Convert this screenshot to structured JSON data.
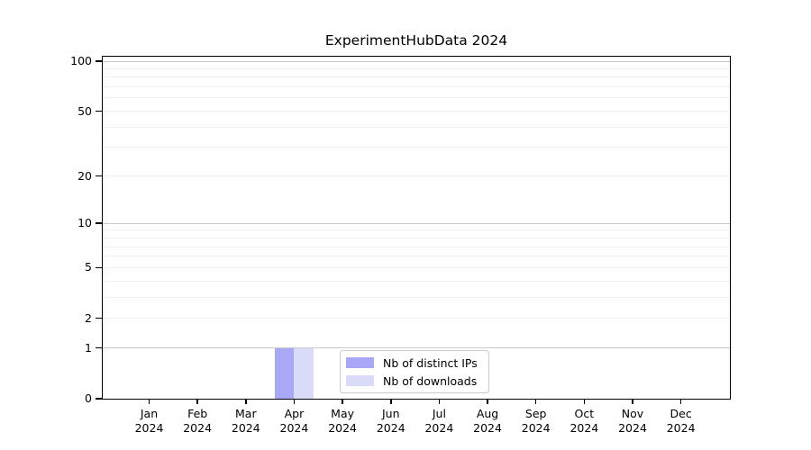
{
  "chart_data": {
    "type": "bar",
    "title": "ExperimentHubData 2024",
    "scale": "log1p",
    "categories": [
      "Jan 2024",
      "Feb 2024",
      "Mar 2024",
      "Apr 2024",
      "May 2024",
      "Jun 2024",
      "Jul 2024",
      "Aug 2024",
      "Sep 2024",
      "Oct 2024",
      "Nov 2024",
      "Dec 2024"
    ],
    "series": [
      {
        "name": "Nb of distinct IPs",
        "color": "#a8a8f6",
        "values": [
          0,
          0,
          0,
          1,
          0,
          0,
          0,
          0,
          0,
          0,
          0,
          0
        ]
      },
      {
        "name": "Nb of downloads",
        "color": "#dadaf9",
        "values": [
          0,
          0,
          0,
          1,
          0,
          0,
          0,
          0,
          0,
          0,
          0,
          0
        ]
      }
    ],
    "xlabel": "",
    "ylabel": "",
    "ylim": [
      0,
      110
    ],
    "y_ticks": [
      0,
      1,
      2,
      5,
      10,
      20,
      50,
      100
    ],
    "y_minor_gridlines": [
      2,
      3,
      4,
      5,
      6,
      7,
      8,
      9,
      20,
      30,
      40,
      50,
      60,
      70,
      80,
      90
    ],
    "y_decade_gridlines": [
      1,
      10,
      100
    ],
    "grid": "horizontal",
    "legend_position": "lower-center"
  },
  "colors": {
    "background": "#ffffff",
    "spine": "#000000",
    "text": "#000000",
    "grid_minor": "#f0f0f0",
    "grid_decade": "#c9c9c9",
    "legend_border": "#cccccc"
  }
}
